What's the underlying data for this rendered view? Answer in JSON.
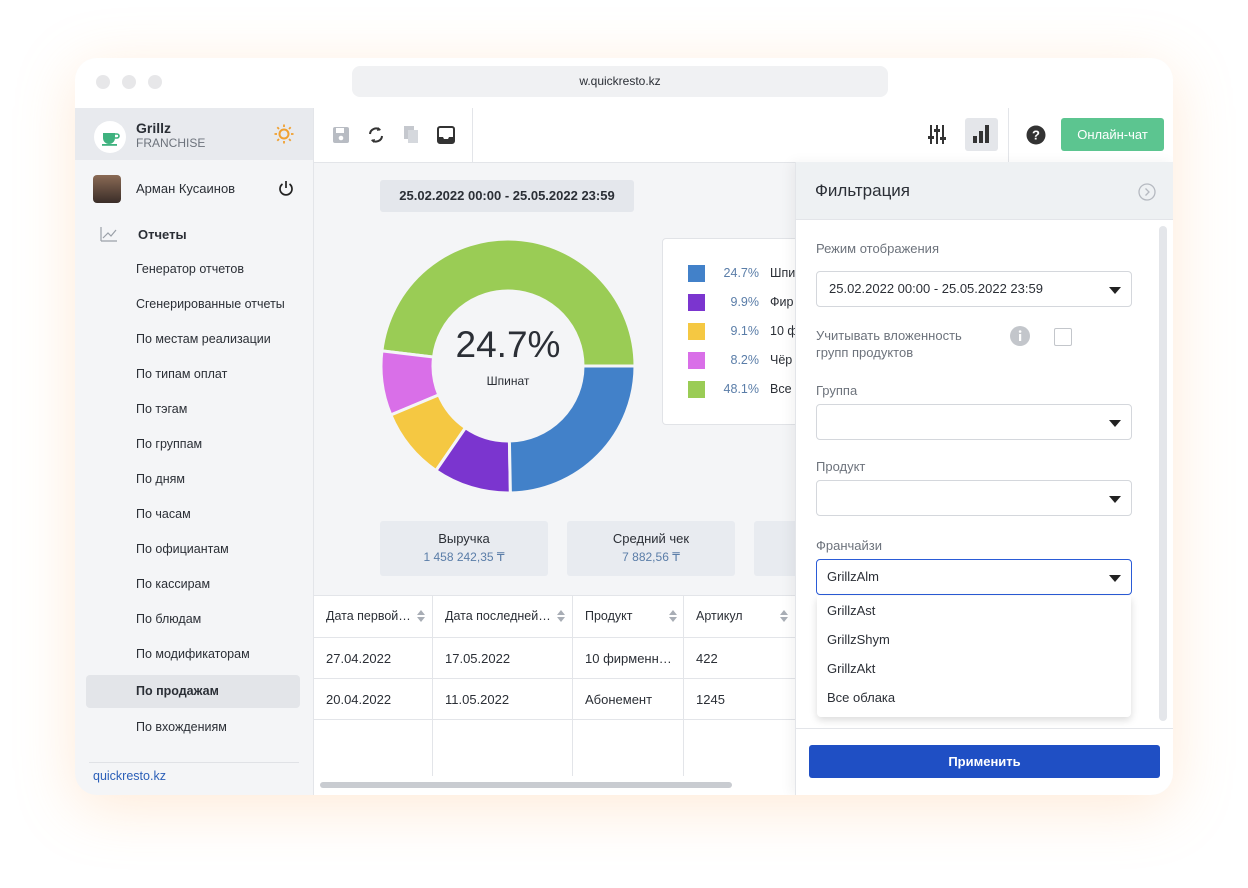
{
  "browser": {
    "url": "w.quickresto.kz"
  },
  "sidebar": {
    "brand": "Grillz",
    "brand_sub": "FRANCHISE",
    "user": "Арман Кусаинов",
    "section": "Отчеты",
    "menu": [
      "Генератор отчетов",
      "Сгенерированные отчеты",
      "По местам реализации",
      "По типам оплат",
      "По тэгам",
      "По группам",
      "По дням",
      "По часам",
      "По официантам",
      "По кассирам",
      "По блюдам",
      "По модификаторам",
      "По продажам",
      "По вхождениям"
    ],
    "footer": "quickresto.kz"
  },
  "toolbar": {
    "chat_button": "Онлайн-чат"
  },
  "report": {
    "period": "25.02.2022 00:00 - 25.05.2022 23:59",
    "center_label": "Шпинат",
    "cards": [
      {
        "title": "Выручка",
        "value": "1 458 242,35 ₸"
      },
      {
        "title": "Средний чек",
        "value": "7 882,56 ₸"
      }
    ],
    "table": {
      "headers": [
        "Дата первой…",
        "Дата последней…",
        "Продукт",
        "Артикул"
      ],
      "rows": [
        [
          "27.04.2022",
          "17.05.2022",
          "10 фирменн…",
          "422"
        ],
        [
          "20.04.2022",
          "11.05.2022",
          "Абонемент",
          "1245"
        ]
      ]
    }
  },
  "chart_data": {
    "type": "pie",
    "categories": [
      "Шпи",
      "Фир",
      "10 ф",
      "Чёр",
      "Все"
    ],
    "values": [
      24.7,
      9.9,
      9.1,
      8.2,
      48.1
    ],
    "value_labels": [
      "24.7%",
      "9.9%",
      "9.1%",
      "8.2%",
      "48.1%"
    ],
    "colors": [
      "#4281c9",
      "#7b35cf",
      "#f5c842",
      "#d96fe8",
      "#9acc55"
    ]
  },
  "filter": {
    "title": "Фильтрация",
    "mode_label": "Режим отображения",
    "mode_value": "25.02.2022 00:00 - 25.05.2022 23:59",
    "nesting_label": "Учитывать вложенность групп продуктов",
    "group_label": "Группа",
    "product_label": "Продукт",
    "franchise_label": "Франчайзи",
    "franchise_value": "GrillzAlm",
    "options": [
      "GrillzAst",
      "GrillzShym",
      "GrillzAkt",
      "Все облака"
    ],
    "apply": "Применить"
  }
}
